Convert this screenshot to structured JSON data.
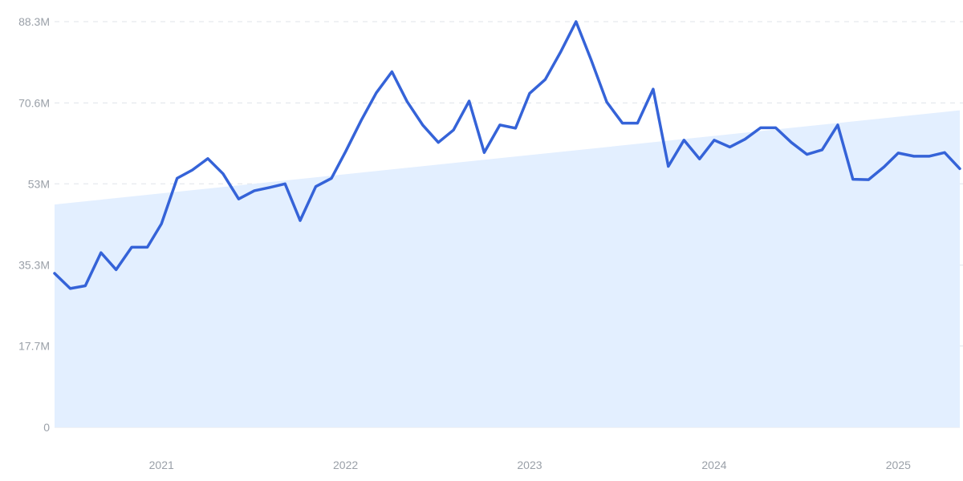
{
  "chart_data": {
    "type": "line",
    "title": "",
    "xlabel": "",
    "ylabel": "",
    "grid": true,
    "x_tick_labels": [
      "2021",
      "2022",
      "2023",
      "2024",
      "2025"
    ],
    "x_tick_dates": [
      "2021-03-01",
      "2022-03-01",
      "2023-03-01",
      "2024-03-01",
      "2025-03-01"
    ],
    "y_tick_labels": [
      "0",
      "17.7M",
      "35.3M",
      "53M",
      "70.6M",
      "88.3M"
    ],
    "y_tick_values": [
      0,
      17700000,
      35300000,
      53000000,
      70600000,
      88300000
    ],
    "xlim": [
      "2020-08-01",
      "2025-07-01"
    ],
    "ylim": [
      0,
      88300000
    ],
    "colors": {
      "line": "#3563d8",
      "trend_fill": "#e3efff"
    },
    "trend": {
      "x": [
        "2020-08-01",
        "2025-07-01"
      ],
      "y": [
        48500000,
        69000000
      ]
    },
    "series": [
      {
        "x": [
          "2020-08-01",
          "2020-09-01",
          "2020-10-01",
          "2020-11-01",
          "2020-12-01",
          "2021-01-01",
          "2021-02-01",
          "2021-03-01",
          "2021-04-01",
          "2021-05-01",
          "2021-06-01",
          "2021-07-01",
          "2021-08-01",
          "2021-09-01",
          "2021-10-01",
          "2021-11-01",
          "2021-12-01",
          "2022-01-01",
          "2022-02-01",
          "2022-03-01",
          "2022-04-01",
          "2022-05-01",
          "2022-06-01",
          "2022-07-01",
          "2022-08-01",
          "2022-09-01",
          "2022-10-01",
          "2022-11-01",
          "2022-12-01",
          "2023-01-01",
          "2023-02-01",
          "2023-03-01",
          "2023-04-01",
          "2023-05-01",
          "2023-06-01",
          "2023-07-01",
          "2023-08-01",
          "2023-09-01",
          "2023-10-01",
          "2023-11-01",
          "2023-12-01",
          "2024-01-01",
          "2024-02-01",
          "2024-03-01",
          "2024-04-01",
          "2024-05-01",
          "2024-06-01",
          "2024-07-01",
          "2024-08-01",
          "2024-09-01",
          "2024-10-01",
          "2024-11-01",
          "2024-12-01",
          "2025-01-01",
          "2025-02-01",
          "2025-03-01",
          "2025-04-01",
          "2025-05-01",
          "2025-06-01",
          "2025-07-01"
        ],
        "y": [
          33500000,
          30200000,
          30800000,
          38000000,
          34300000,
          39200000,
          39200000,
          44300000,
          54200000,
          56000000,
          58500000,
          55200000,
          49700000,
          51500000,
          52200000,
          53000000,
          45000000,
          52400000,
          54200000,
          60000000,
          66800000,
          72800000,
          77400000,
          70900000,
          65800000,
          62000000,
          64700000,
          71000000,
          59800000,
          65800000,
          65100000,
          72700000,
          75700000,
          81600000,
          88300000,
          80000000,
          70800000,
          66200000,
          66200000,
          73600000,
          56800000,
          62500000,
          58400000,
          62500000,
          61000000,
          62700000,
          65200000,
          65200000,
          62000000,
          59400000,
          60400000,
          65800000,
          54000000,
          53900000,
          56700000,
          59700000,
          59000000,
          59000000,
          59800000,
          56300000
        ]
      }
    ]
  }
}
